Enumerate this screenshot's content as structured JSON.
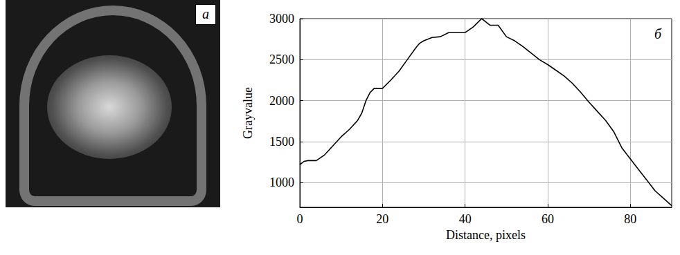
{
  "photo": {
    "label": "a"
  },
  "chart_data": {
    "type": "line",
    "annotation": "б",
    "x_label": "Distance, pixels",
    "y_label": "Grayvalue",
    "x": [
      0,
      1,
      2,
      4,
      6,
      8,
      10,
      12,
      14,
      15,
      16,
      17,
      18,
      20,
      22,
      24,
      26,
      28,
      29,
      30,
      32,
      34,
      36,
      40,
      42,
      43,
      44,
      45,
      46,
      48,
      50,
      52,
      54,
      56,
      58,
      60,
      62,
      64,
      66,
      68,
      70,
      72,
      74,
      76,
      78,
      80,
      82,
      84,
      86,
      88,
      90
    ],
    "values": [
      1220,
      1260,
      1270,
      1270,
      1340,
      1450,
      1560,
      1650,
      1760,
      1850,
      2000,
      2100,
      2150,
      2150,
      2250,
      2360,
      2500,
      2640,
      2700,
      2730,
      2770,
      2780,
      2830,
      2830,
      2900,
      2950,
      3000,
      2960,
      2920,
      2920,
      2780,
      2730,
      2660,
      2580,
      2500,
      2440,
      2370,
      2300,
      2210,
      2100,
      1980,
      1870,
      1760,
      1620,
      1420,
      1290,
      1160,
      1030,
      900,
      810,
      720
    ],
    "color": "#000000",
    "xlim": [
      0,
      90
    ],
    "xticks": [
      0,
      20,
      40,
      60,
      80
    ],
    "ylim": [
      700,
      3000
    ],
    "yticks": [
      1000,
      1500,
      2000,
      2500,
      3000
    ],
    "grid": true
  }
}
